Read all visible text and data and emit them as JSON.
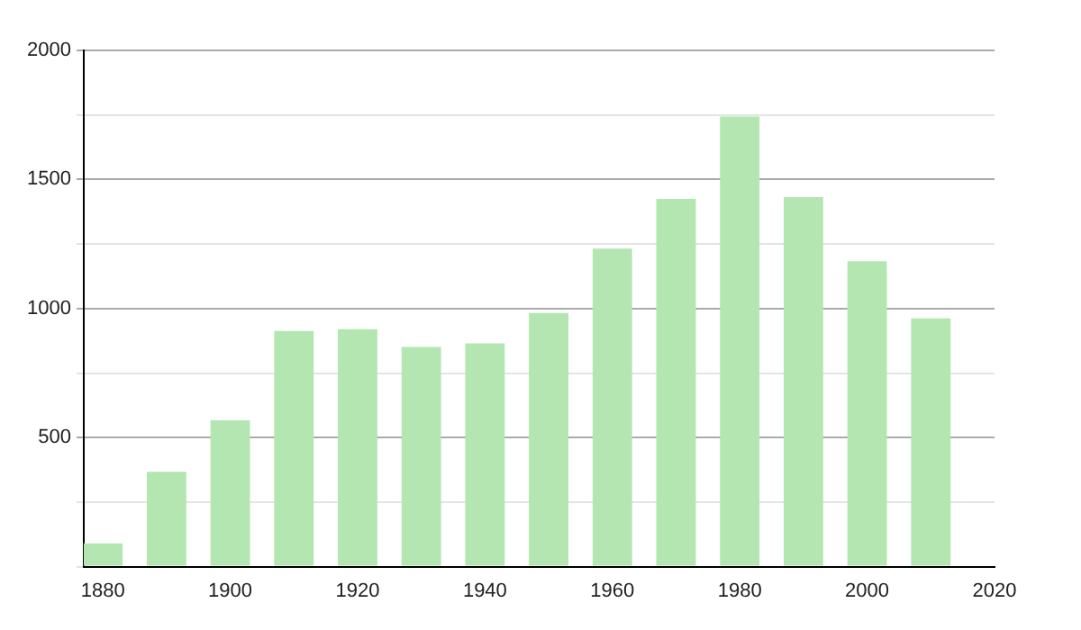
{
  "chart_data": {
    "type": "bar",
    "x": [
      1880,
      1890,
      1900,
      1910,
      1920,
      1930,
      1940,
      1950,
      1960,
      1970,
      1980,
      1990,
      2000,
      2010
    ],
    "values": [
      90,
      367,
      567,
      913,
      920,
      851,
      865,
      983,
      1232,
      1425,
      1744,
      1432,
      1183,
      962
    ],
    "color": "#b3e6b1",
    "xlim": [
      1877,
      2020
    ],
    "xticks": [
      1880,
      1900,
      1920,
      1940,
      1960,
      1980,
      2000,
      2020
    ],
    "ylim": [
      0,
      2000
    ],
    "yticks": [
      {
        "value": 0,
        "label": null
      },
      {
        "value": 250,
        "label": null
      },
      500,
      {
        "value": 750,
        "label": null
      },
      1000,
      {
        "value": 1250,
        "label": null
      },
      1500,
      {
        "value": 1750,
        "label": null
      },
      2000
    ],
    "grid": "y",
    "legend": false
  }
}
